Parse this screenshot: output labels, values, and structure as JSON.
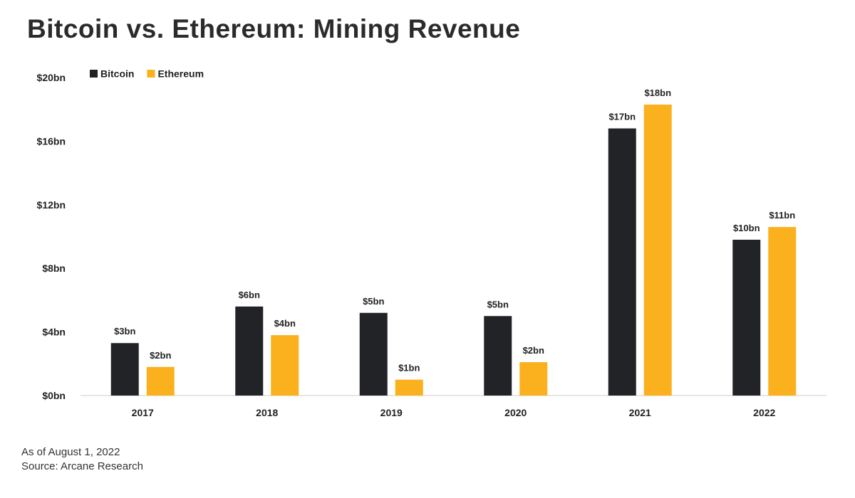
{
  "header": {
    "title": "Bitcoin vs. Ethereum: Mining Revenue"
  },
  "footer": {
    "date_note": "As of August 1, 2022",
    "source": "Source: Arcane Research"
  },
  "colors": {
    "bitcoin": "#212327",
    "ethereum": "#fbb01d",
    "axis": "#cccccc",
    "text": "#222222"
  },
  "chart_data": {
    "type": "bar",
    "title": "Bitcoin vs. Ethereum: Mining Revenue",
    "xlabel": "",
    "ylabel": "",
    "categories": [
      "2017",
      "2018",
      "2019",
      "2020",
      "2021",
      "2022"
    ],
    "series": [
      {
        "name": "Bitcoin",
        "color": "#212327",
        "values": [
          3.3,
          5.6,
          5.2,
          5.0,
          16.8,
          9.8
        ],
        "labels": [
          "$3bn",
          "$6bn",
          "$5bn",
          "$5bn",
          "$17bn",
          "$10bn"
        ]
      },
      {
        "name": "Ethereum",
        "color": "#fbb01d",
        "values": [
          1.8,
          3.8,
          1.0,
          2.1,
          18.3,
          10.6
        ],
        "labels": [
          "$2bn",
          "$4bn",
          "$1bn",
          "$2bn",
          "$18bn",
          "$11bn"
        ]
      }
    ],
    "ylim": [
      0,
      20
    ],
    "yticks": [
      0,
      4,
      8,
      12,
      16,
      20
    ],
    "ytick_labels": [
      "$0bn",
      "$4bn",
      "$8bn",
      "$12bn",
      "$16bn",
      "$20bn"
    ],
    "grid": false,
    "legend": "top-left"
  }
}
